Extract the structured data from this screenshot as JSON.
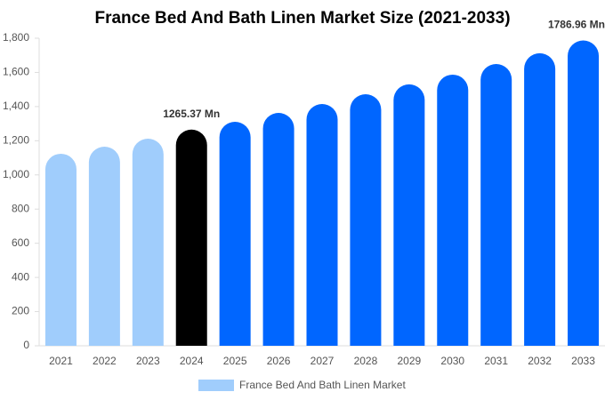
{
  "chart_data": {
    "type": "bar",
    "title": "France Bed And Bath Linen Market Size (2021-2033)",
    "categories": [
      "2021",
      "2022",
      "2023",
      "2024",
      "2025",
      "2026",
      "2027",
      "2028",
      "2029",
      "2030",
      "2031",
      "2032",
      "2033"
    ],
    "series": [
      {
        "name": "France Bed And Bath Linen Market",
        "color": "#a0cdfc",
        "values": [
          1124,
          1165,
          1212,
          1265.37,
          1311,
          1363,
          1415,
          1472,
          1530,
          1587,
          1649,
          1712,
          1786.96
        ],
        "value_labels": [
          null,
          null,
          null,
          "1265.37 Mn",
          null,
          null,
          null,
          null,
          null,
          null,
          null,
          null,
          "1786.96 Mn"
        ],
        "colors": [
          "#a0cdfc",
          "#a0cdfc",
          "#a0cdfc",
          "#000000",
          "#0066ff",
          "#0066ff",
          "#0066ff",
          "#0066ff",
          "#0066ff",
          "#0066ff",
          "#0066ff",
          "#0066ff",
          "#0066ff"
        ]
      }
    ],
    "ylim": [
      0,
      1800
    ],
    "yticks": [
      0,
      200,
      400,
      600,
      800,
      {
        "value": 1000,
        "label": "1,000"
      },
      {
        "value": 1200,
        "label": "1,200"
      },
      {
        "value": 1400,
        "label": "1,400"
      },
      {
        "value": 1600,
        "label": "1,600"
      },
      {
        "value": 1800,
        "label": "1,800"
      }
    ],
    "grid": false,
    "legend": "bottom"
  }
}
